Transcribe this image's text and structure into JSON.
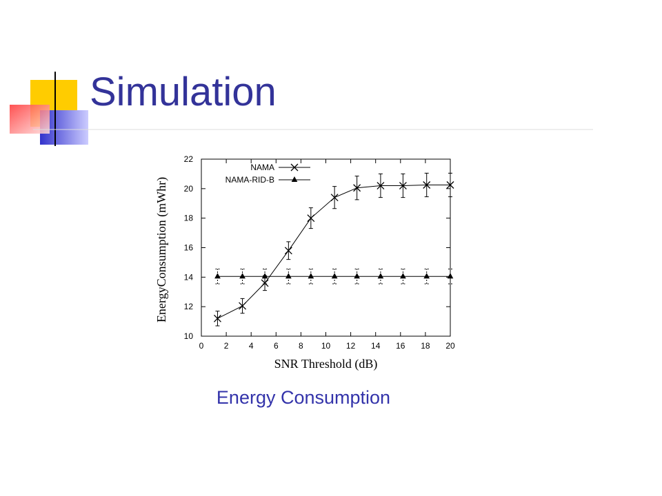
{
  "slide": {
    "title": "Simulation",
    "caption": "Energy Consumption"
  },
  "chart_data": {
    "type": "line",
    "xlabel": "SNR Threshold (dB)",
    "ylabel": "EnergyConsumption (mWhr)",
    "x": [
      1.3,
      3.3,
      5.1,
      7.0,
      8.8,
      10.7,
      12.5,
      14.4,
      16.2,
      18.1,
      20.0
    ],
    "series": [
      {
        "name": "NAMA",
        "color": "#000000",
        "marker": "x",
        "values": [
          11.2,
          12.05,
          13.6,
          15.8,
          18.0,
          19.4,
          20.05,
          20.2,
          20.2,
          20.25,
          20.25
        ],
        "errors": [
          0.5,
          0.5,
          0.5,
          0.6,
          0.7,
          0.75,
          0.8,
          0.8,
          0.8,
          0.8,
          0.8
        ]
      },
      {
        "name": "NAMA-RID-B",
        "color": "#000000",
        "marker": "triangle",
        "values": [
          14.05,
          14.05,
          14.05,
          14.05,
          14.05,
          14.05,
          14.05,
          14.05,
          14.05,
          14.05,
          14.05
        ],
        "errors": [
          0.5,
          0.5,
          0.5,
          0.5,
          0.5,
          0.5,
          0.5,
          0.5,
          0.5,
          0.5,
          0.5
        ]
      }
    ],
    "xlim": [
      0,
      20
    ],
    "xticks": [
      0,
      2,
      4,
      6,
      8,
      10,
      12,
      14,
      16,
      18,
      20
    ],
    "ylim": [
      10,
      22
    ],
    "yticks": [
      10,
      12,
      14,
      16,
      18,
      20,
      22
    ],
    "legend": "upper left"
  }
}
